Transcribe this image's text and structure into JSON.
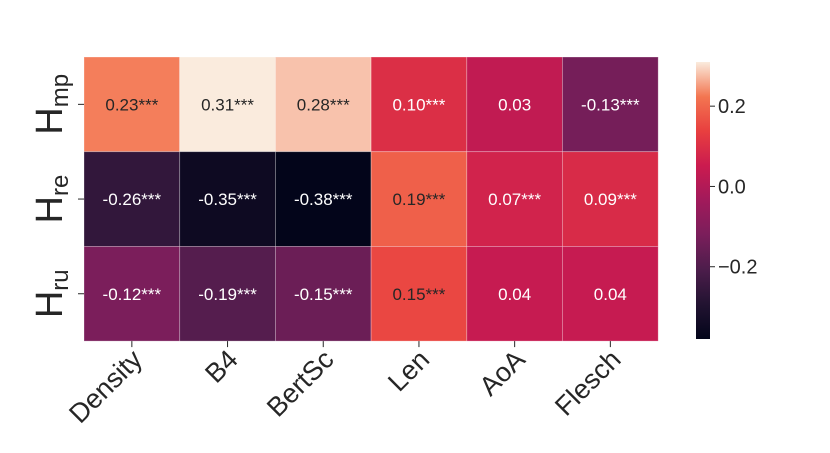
{
  "chart_data": {
    "type": "heatmap",
    "title": "",
    "xlabel": "",
    "ylabel": "",
    "columns": [
      "Density",
      "B4",
      "BertSc",
      "Len",
      "AoA",
      "Flesch"
    ],
    "rows": [
      {
        "base": "H",
        "sub": "mp"
      },
      {
        "base": "H",
        "sub": "re"
      },
      {
        "base": "H",
        "sub": "ru"
      }
    ],
    "values": [
      [
        0.23,
        0.31,
        0.28,
        0.1,
        0.03,
        -0.13
      ],
      [
        -0.26,
        -0.35,
        -0.38,
        0.19,
        0.07,
        0.09
      ],
      [
        -0.12,
        -0.19,
        -0.15,
        0.15,
        0.04,
        0.04
      ]
    ],
    "cell_labels": [
      [
        "0.23***",
        "0.31***",
        "0.28***",
        "0.10***",
        "0.03",
        "-0.13***"
      ],
      [
        "-0.26***",
        "-0.35***",
        "-0.38***",
        "0.19***",
        "0.07***",
        "0.09***"
      ],
      [
        "-0.12***",
        "-0.19***",
        "-0.15***",
        "0.15***",
        "0.04",
        "0.04"
      ]
    ],
    "colorbar": {
      "range": [
        -0.38,
        0.31
      ],
      "ticks": [
        {
          "value": 0.2,
          "label": "0.2"
        },
        {
          "value": 0.0,
          "label": "0.0"
        },
        {
          "value": -0.2,
          "label": "−0.2"
        }
      ],
      "colormap": "rocket"
    },
    "grid": false,
    "legend": "none"
  }
}
